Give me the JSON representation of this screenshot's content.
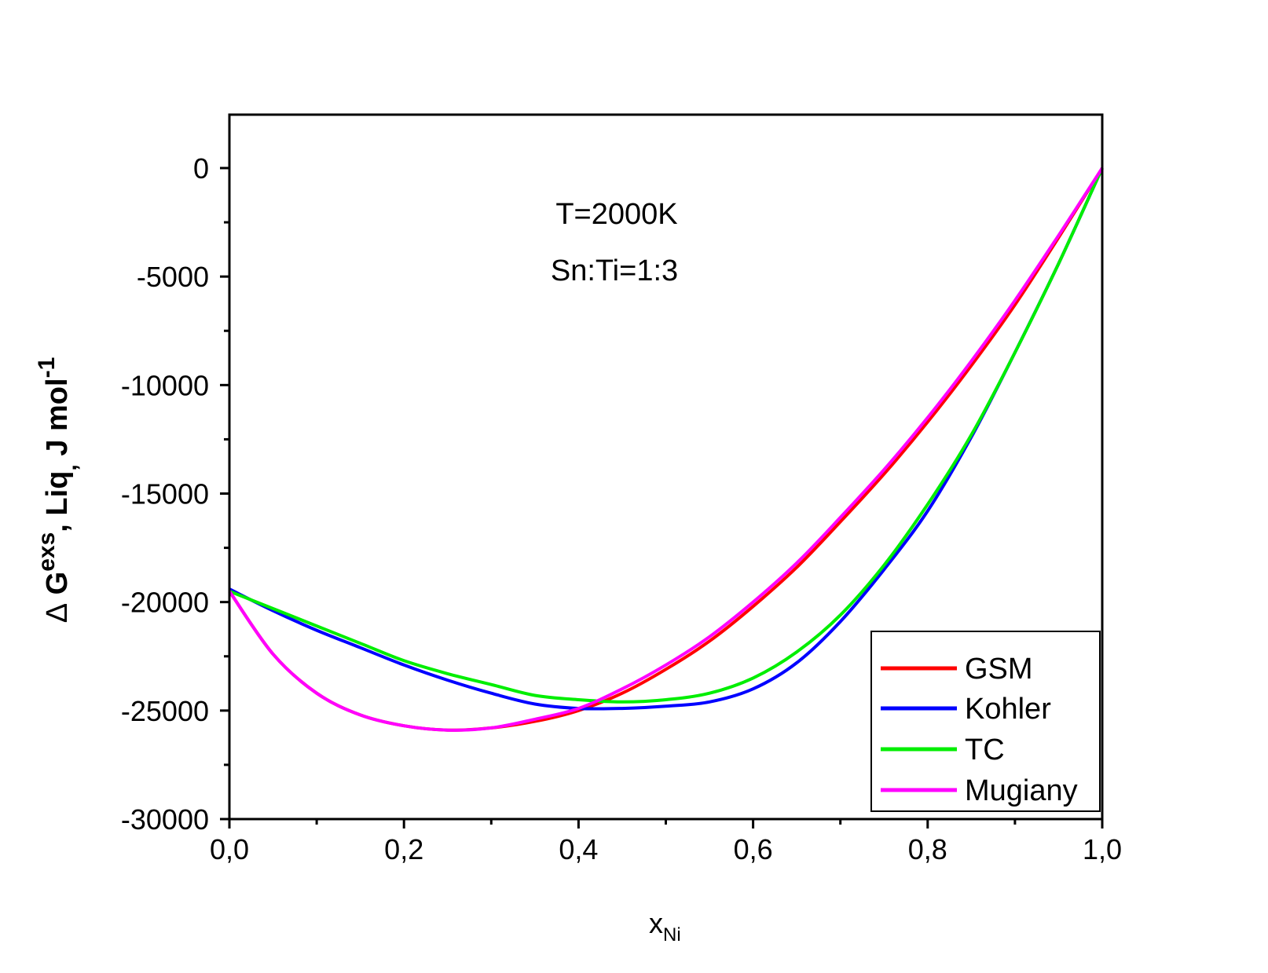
{
  "chart_data": {
    "type": "line",
    "annotations": [
      "T=2000K",
      "Sn:Ti=1:3"
    ],
    "xlabel": {
      "main": "x",
      "sub": "Ni"
    },
    "ylabel": {
      "delta": "Δ",
      "g": "G",
      "sup1": "exs",
      "mid": ", Liq",
      "sub": ",",
      "unit": " J mol",
      "sup2": "-1"
    },
    "xlim": [
      0.0,
      1.0
    ],
    "ylim": [
      -30000,
      2500
    ],
    "xticks": [
      0.0,
      0.2,
      0.4,
      0.6,
      0.8,
      1.0
    ],
    "xtick_labels": [
      "0,0",
      "0,2",
      "0,4",
      "0,6",
      "0,8",
      "1,0"
    ],
    "yticks": [
      0,
      -5000,
      -10000,
      -15000,
      -20000,
      -25000,
      -30000
    ],
    "ytick_labels": [
      "0",
      "-5000",
      "-10000",
      "-15000",
      "-20000",
      "-25000",
      "-30000"
    ],
    "legend_position": "bottom-right",
    "x": [
      0.0,
      0.05,
      0.1,
      0.15,
      0.2,
      0.25,
      0.3,
      0.35,
      0.4,
      0.45,
      0.5,
      0.55,
      0.6,
      0.65,
      0.7,
      0.75,
      0.8,
      0.85,
      0.9,
      0.95,
      1.0
    ],
    "series": [
      {
        "name": "GSM",
        "color": "#ff0000",
        "values": [
          -19500,
          -22400,
          -24200,
          -25200,
          -25700,
          -25900,
          -25800,
          -25500,
          -25000,
          -24200,
          -23100,
          -21800,
          -20200,
          -18400,
          -16300,
          -14100,
          -11700,
          -9100,
          -6300,
          -3200,
          0
        ]
      },
      {
        "name": "Kohler",
        "color": "#0000ff",
        "values": [
          -19400,
          -20400,
          -21300,
          -22100,
          -22900,
          -23600,
          -24200,
          -24700,
          -24900,
          -24900,
          -24800,
          -24600,
          -24000,
          -22800,
          -20900,
          -18500,
          -15800,
          -12400,
          -8500,
          -4400,
          0
        ]
      },
      {
        "name": "TC",
        "color": "#00ee00",
        "values": [
          -19500,
          -20300,
          -21100,
          -21900,
          -22700,
          -23300,
          -23800,
          -24300,
          -24500,
          -24600,
          -24500,
          -24200,
          -23500,
          -22300,
          -20600,
          -18300,
          -15500,
          -12300,
          -8500,
          -4400,
          0
        ]
      },
      {
        "name": "Mugiany",
        "color": "#ff00ff",
        "values": [
          -19500,
          -22400,
          -24200,
          -25200,
          -25700,
          -25900,
          -25800,
          -25400,
          -24900,
          -24000,
          -22900,
          -21600,
          -20000,
          -18200,
          -16100,
          -13900,
          -11500,
          -8900,
          -6100,
          -3100,
          0
        ]
      }
    ]
  }
}
